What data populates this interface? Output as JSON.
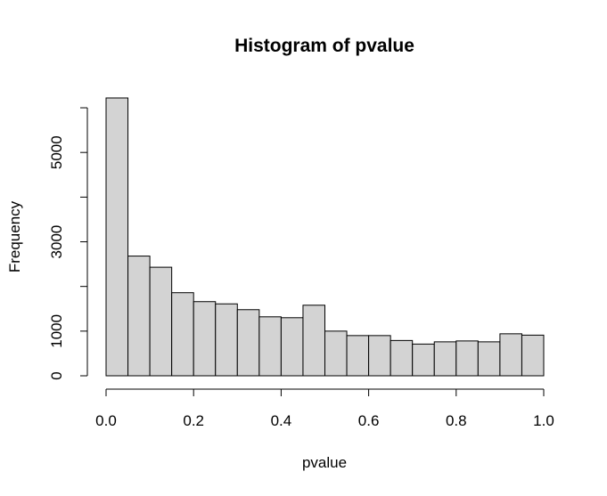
{
  "chart_data": {
    "type": "bar",
    "title": "Histogram of pvalue",
    "xlabel": "pvalue",
    "ylabel": "Frequency",
    "bin_edges": [
      0.0,
      0.05,
      0.1,
      0.15,
      0.2,
      0.25,
      0.3,
      0.35,
      0.4,
      0.45,
      0.5,
      0.55,
      0.6,
      0.65,
      0.7,
      0.75,
      0.8,
      0.85,
      0.9,
      0.95,
      1.0
    ],
    "values": [
      6220,
      2680,
      2430,
      1860,
      1660,
      1610,
      1480,
      1320,
      1300,
      1580,
      1000,
      900,
      900,
      790,
      710,
      760,
      780,
      760,
      940,
      910
    ],
    "xlim": [
      0,
      1
    ],
    "ylim": [
      0,
      6220
    ],
    "x_ticks": [
      0.0,
      0.2,
      0.4,
      0.6,
      0.8,
      1.0
    ],
    "x_tick_labels": [
      "0.0",
      "0.2",
      "0.4",
      "0.6",
      "0.8",
      "1.0"
    ],
    "y_ticks": [
      0,
      1000,
      2000,
      3000,
      4000,
      5000,
      6000
    ],
    "y_tick_labels": [
      "0",
      "1000",
      "",
      "3000",
      "",
      "5000",
      ""
    ],
    "bar_fill": "#d3d3d3",
    "bar_stroke": "#000000",
    "grid": false
  }
}
